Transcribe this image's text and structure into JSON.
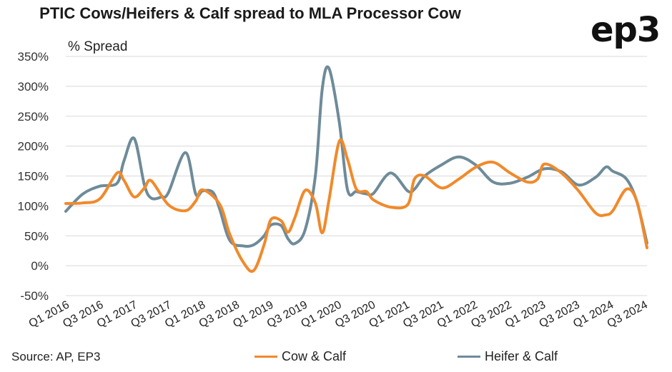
{
  "title": "PTIC Cows/Heifers & Calf spread to MLA Processor Cow",
  "logo": "ep3",
  "source": "Source: AP, EP3",
  "colors": {
    "cow_calf": "#F08A2C",
    "heifer_calf": "#6E8B99",
    "grid": "#d9d9d9"
  },
  "chart_data": {
    "type": "line",
    "ylabel": "% Spread",
    "ylim": [
      -50,
      350
    ],
    "yticks": [
      -50,
      0,
      50,
      100,
      150,
      200,
      250,
      300,
      350
    ],
    "ytick_labels": [
      "-50%",
      "0%",
      "50%",
      "100%",
      "150%",
      "200%",
      "250%",
      "300%",
      "350%"
    ],
    "xtick_labels": [
      "Q1 2016",
      "Q3 2016",
      "Q1 2017",
      "Q3 2017",
      "Q1 2018",
      "Q3 2018",
      "Q1 2019",
      "Q3 2019",
      "Q1 2020",
      "Q3 2020",
      "Q1 2021",
      "Q3 2021",
      "Q1 2022",
      "Q3 2022",
      "Q1 2023",
      "Q3 2023",
      "Q1 2024",
      "Q3 2024"
    ],
    "x_range": [
      2016.0,
      2024.5
    ],
    "grid": "horizontal",
    "legend_position": "bottom",
    "series": [
      {
        "name": "Cow & Calf",
        "color": "#F08A2C",
        "x": [
          2016.0,
          2016.25,
          2016.5,
          2016.75,
          2016.85,
          2017.0,
          2017.15,
          2017.25,
          2017.5,
          2017.75,
          2017.9,
          2018.0,
          2018.25,
          2018.4,
          2018.6,
          2018.75,
          2018.9,
          2019.0,
          2019.15,
          2019.25,
          2019.35,
          2019.5,
          2019.65,
          2019.75,
          2019.85,
          2020.0,
          2020.12,
          2020.25,
          2020.4,
          2020.5,
          2020.75,
          2021.0,
          2021.1,
          2021.25,
          2021.5,
          2021.75,
          2022.0,
          2022.25,
          2022.5,
          2022.75,
          2022.9,
          2023.0,
          2023.25,
          2023.5,
          2023.75,
          2023.9,
          2024.0,
          2024.2,
          2024.35,
          2024.5
        ],
        "values": [
          104,
          105,
          112,
          155,
          143,
          115,
          130,
          142,
          102,
          92,
          108,
          127,
          103,
          52,
          5,
          -8,
          35,
          77,
          75,
          56,
          80,
          126,
          105,
          55,
          110,
          208,
          178,
          128,
          124,
          110,
          98,
          102,
          145,
          150,
          130,
          145,
          165,
          173,
          155,
          140,
          145,
          170,
          155,
          125,
          88,
          85,
          92,
          128,
          108,
          30
        ]
      },
      {
        "name": "Heifer & Calf",
        "color": "#6E8B99",
        "x": [
          2016.0,
          2016.25,
          2016.5,
          2016.75,
          2016.85,
          2017.0,
          2017.15,
          2017.25,
          2017.4,
          2017.5,
          2017.75,
          2017.9,
          2018.0,
          2018.15,
          2018.25,
          2018.4,
          2018.6,
          2018.75,
          2018.9,
          2019.0,
          2019.15,
          2019.25,
          2019.35,
          2019.5,
          2019.65,
          2019.75,
          2019.85,
          2020.0,
          2020.12,
          2020.25,
          2020.4,
          2020.5,
          2020.75,
          2021.0,
          2021.1,
          2021.25,
          2021.5,
          2021.75,
          2022.0,
          2022.25,
          2022.5,
          2022.75,
          2023.0,
          2023.25,
          2023.5,
          2023.75,
          2023.9,
          2024.0,
          2024.2,
          2024.35,
          2024.5
        ],
        "values": [
          91,
          120,
          133,
          138,
          175,
          213,
          135,
          113,
          115,
          122,
          189,
          120,
          125,
          123,
          95,
          42,
          33,
          35,
          50,
          68,
          67,
          45,
          37,
          60,
          150,
          295,
          330,
          240,
          127,
          124,
          120,
          121,
          155,
          125,
          128,
          150,
          169,
          182,
          168,
          140,
          138,
          148,
          162,
          157,
          135,
          148,
          165,
          158,
          145,
          108,
          38
        ]
      }
    ]
  }
}
